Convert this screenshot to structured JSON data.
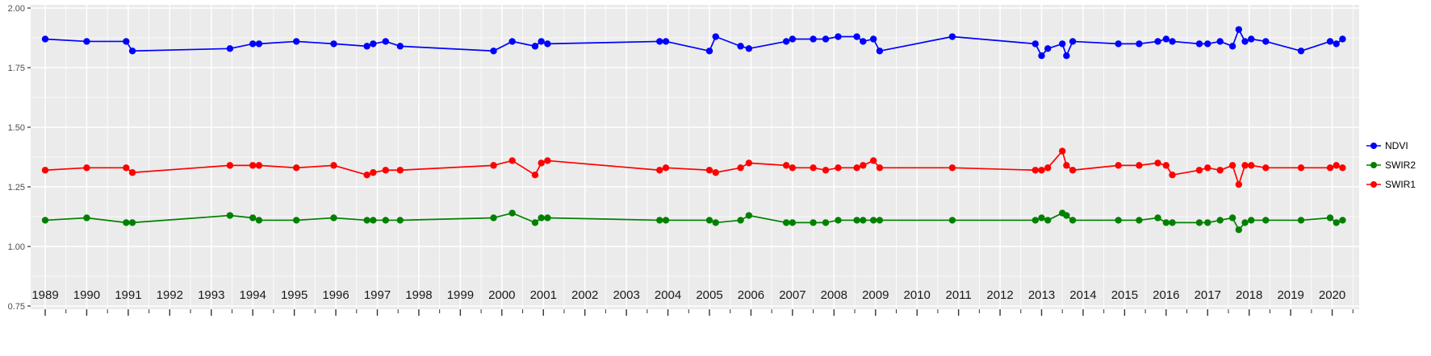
{
  "chart_data": {
    "type": "line",
    "title": "",
    "xlabel": "",
    "ylabel": "",
    "panel_background": "#ebebeb",
    "grid": true,
    "grid_color": "#ffffff",
    "legend_position": "right",
    "xlim": [
      1988.65,
      2020.65
    ],
    "ylim": [
      0.75,
      2.0
    ],
    "x_ticks": [
      1989,
      1990,
      1991,
      1992,
      1993,
      1994,
      1995,
      1996,
      1997,
      1998,
      1999,
      2000,
      2001,
      2002,
      2003,
      2004,
      2005,
      2006,
      2007,
      2008,
      2009,
      2010,
      2011,
      2012,
      2013,
      2014,
      2015,
      2016,
      2017,
      2018,
      2019,
      2020
    ],
    "y_tick_labels": [
      "2.00",
      "1.75",
      "1.50",
      "1.25",
      "1.00",
      "0.75"
    ],
    "x": [
      1989.0,
      1990.0,
      1990.95,
      1991.1,
      1993.45,
      1994.0,
      1994.15,
      1995.05,
      1995.95,
      1996.75,
      1996.9,
      1997.2,
      1997.55,
      1999.8,
      2000.25,
      2000.8,
      2000.95,
      2001.1,
      2003.8,
      2003.95,
      2005.0,
      2005.15,
      2005.75,
      2005.95,
      2006.85,
      2007.0,
      2007.5,
      2007.8,
      2008.1,
      2008.55,
      2008.7,
      2008.95,
      2009.1,
      2010.85,
      2012.85,
      2013.0,
      2013.15,
      2013.5,
      2013.6,
      2013.75,
      2014.85,
      2015.35,
      2015.8,
      2016.0,
      2016.15,
      2016.8,
      2017.0,
      2017.3,
      2017.6,
      2017.75,
      2017.9,
      2018.05,
      2018.4,
      2019.25,
      2019.95,
      2020.1,
      2020.25
    ],
    "series": [
      {
        "name": "NDVI",
        "color": "#0000ff",
        "values": [
          1.87,
          1.86,
          1.86,
          1.82,
          1.83,
          1.85,
          1.85,
          1.86,
          1.85,
          1.84,
          1.85,
          1.86,
          1.84,
          1.82,
          1.86,
          1.84,
          1.86,
          1.85,
          1.86,
          1.86,
          1.82,
          1.88,
          1.84,
          1.83,
          1.86,
          1.87,
          1.87,
          1.87,
          1.88,
          1.88,
          1.86,
          1.87,
          1.82,
          1.88,
          1.85,
          1.8,
          1.83,
          1.85,
          1.8,
          1.86,
          1.85,
          1.85,
          1.86,
          1.87,
          1.86,
          1.85,
          1.85,
          1.86,
          1.84,
          1.91,
          1.86,
          1.87,
          1.86,
          1.82,
          1.86,
          1.85,
          1.87
        ]
      },
      {
        "name": "SWIR2",
        "color": "#008000",
        "values": [
          1.11,
          1.12,
          1.1,
          1.1,
          1.13,
          1.12,
          1.11,
          1.11,
          1.12,
          1.11,
          1.11,
          1.11,
          1.11,
          1.12,
          1.14,
          1.1,
          1.12,
          1.12,
          1.11,
          1.11,
          1.11,
          1.1,
          1.11,
          1.13,
          1.1,
          1.1,
          1.1,
          1.1,
          1.11,
          1.11,
          1.11,
          1.11,
          1.11,
          1.11,
          1.11,
          1.12,
          1.11,
          1.14,
          1.13,
          1.11,
          1.11,
          1.11,
          1.12,
          1.1,
          1.1,
          1.1,
          1.1,
          1.11,
          1.12,
          1.07,
          1.1,
          1.11,
          1.11,
          1.11,
          1.12,
          1.1,
          1.11
        ]
      },
      {
        "name": "SWIR1",
        "color": "#ff0000",
        "values": [
          1.32,
          1.33,
          1.33,
          1.31,
          1.34,
          1.34,
          1.34,
          1.33,
          1.34,
          1.3,
          1.31,
          1.32,
          1.32,
          1.34,
          1.36,
          1.3,
          1.35,
          1.36,
          1.32,
          1.33,
          1.32,
          1.31,
          1.33,
          1.35,
          1.34,
          1.33,
          1.33,
          1.32,
          1.33,
          1.33,
          1.34,
          1.36,
          1.33,
          1.33,
          1.32,
          1.32,
          1.33,
          1.4,
          1.34,
          1.32,
          1.34,
          1.34,
          1.35,
          1.34,
          1.3,
          1.32,
          1.33,
          1.32,
          1.34,
          1.26,
          1.34,
          1.34,
          1.33,
          1.33,
          1.33,
          1.34,
          1.33
        ]
      }
    ]
  },
  "legend": {
    "entries": [
      "NDVI",
      "SWIR2",
      "SWIR1"
    ]
  }
}
